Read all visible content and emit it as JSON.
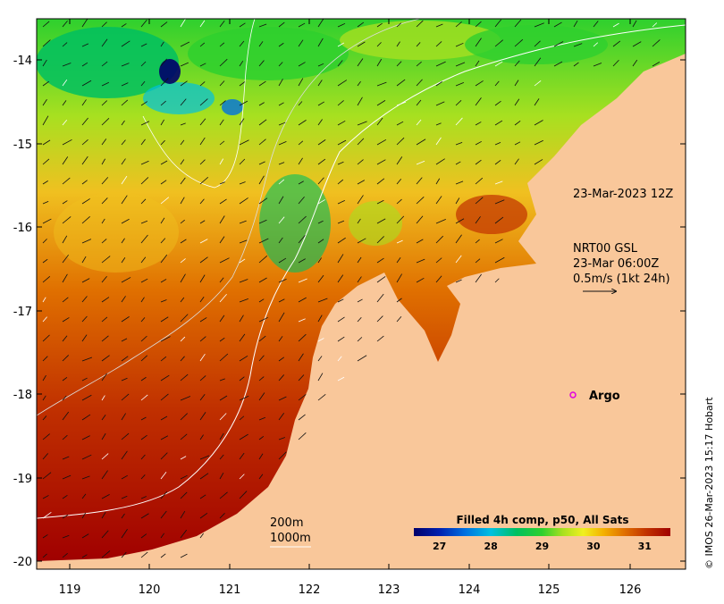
{
  "map": {
    "lat_ticks": [
      "-14",
      "-15",
      "-16",
      "-17",
      "-18",
      "-19",
      "-20"
    ],
    "lon_ticks": [
      "119",
      "120",
      "121",
      "122",
      "123",
      "124",
      "125",
      "126"
    ],
    "date_label": "23-Mar-2023 12Z",
    "current_title": "NRT00 GSL",
    "current_time": "23-Mar 06:00Z",
    "current_scale": "0.5m/s (1kt 24h)",
    "argo_label": "Argo",
    "contour_200": "200m",
    "contour_1000": "1000m",
    "legend_title": "Filled 4h comp, p50, All Sats",
    "legend_ticks": [
      "27",
      "28",
      "29",
      "30",
      "31"
    ],
    "legend_min": 26.5,
    "legend_max": 31.5,
    "legend_tick_values": [
      27,
      28,
      29,
      30,
      31
    ],
    "credit": "© IMOS 26-Mar-2023 15:17 Hobart",
    "colors": {
      "land": "#f9c79a",
      "argo": "#e000e0",
      "vector": "#111111",
      "contour": "#ffffff",
      "sst_ramp": [
        "#00006a",
        "#0020b0",
        "#0070e0",
        "#00c0e0",
        "#00c060",
        "#2ed02e",
        "#a8e020",
        "#f0f020",
        "#f4b000",
        "#e07000",
        "#c03000",
        "#a00000"
      ]
    }
  }
}
